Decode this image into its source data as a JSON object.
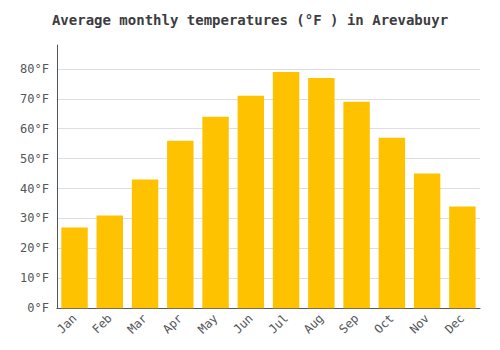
{
  "chart_data": {
    "type": "bar",
    "title": "Average monthly temperatures (°F ) in Arevabuyr",
    "categories": [
      "Jan",
      "Feb",
      "Mar",
      "Apr",
      "May",
      "Jun",
      "Jul",
      "Aug",
      "Sep",
      "Oct",
      "Nov",
      "Dec"
    ],
    "values": [
      27,
      31,
      43,
      56,
      64,
      71,
      79,
      77,
      69,
      57,
      45,
      34
    ],
    "color": "#FFC200",
    "ylim": [
      0,
      88
    ],
    "yticks": [
      {
        "value": 0,
        "label": "0°F"
      },
      {
        "value": 10,
        "label": "10°F"
      },
      {
        "value": 20,
        "label": "20°F"
      },
      {
        "value": 30,
        "label": "30°F"
      },
      {
        "value": 40,
        "label": "40°F"
      },
      {
        "value": 50,
        "label": "50°F"
      },
      {
        "value": 60,
        "label": "60°F"
      },
      {
        "value": 70,
        "label": "70°F"
      },
      {
        "value": 80,
        "label": "80°F"
      }
    ],
    "grid": true
  }
}
